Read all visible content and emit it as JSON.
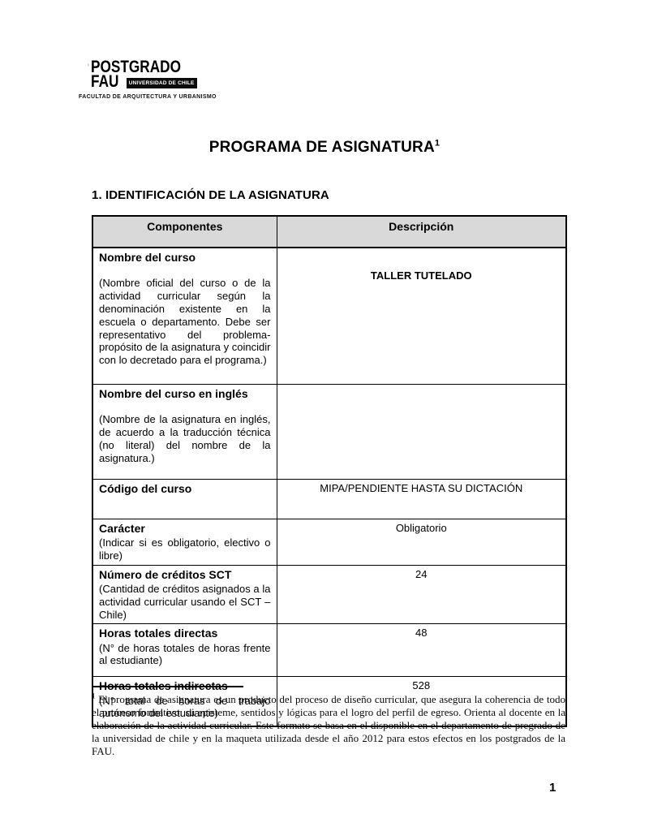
{
  "colors": {
    "ink": "#000000",
    "table_header_bg": "#d9d9d9",
    "badge_bg": "#0c0c0c",
    "badge_text": "#ffffff"
  },
  "logo": {
    "line1": "POSTGRADO",
    "line2": "FAU",
    "badge": "UNIVERSIDAD DE CHILE",
    "subtitle": "FACULTAD DE ARQUITECTURA Y URBANISMO",
    "emblem": "university-of-chile-shield-with-star"
  },
  "title": {
    "text": "PROGRAMA DE ASIGNATURA",
    "superscript": "1"
  },
  "section_heading": "1. IDENTIFICACIÓN DE LA ASIGNATURA",
  "table": {
    "headers": [
      "Componentes",
      "Descripción"
    ],
    "rows": [
      {
        "component": "Nombre del curso",
        "note": "(Nombre oficial del curso o de la actividad curricular según la denominación existente en la escuela o departamento. Debe ser representativo del problema-propósito de la asignatura y coincidir con lo decretado para el programa.)",
        "spacer": true,
        "description": "TALLER TUTELADO",
        "desc_bold": true
      },
      {
        "component": "Nombre del curso en inglés",
        "note": "(Nombre de la asignatura en inglés, de acuerdo a la traducción técnica (no literal) del nombre de la asignatura.)",
        "spacer": true,
        "description": "",
        "desc_bold": false
      },
      {
        "component": "Código del curso",
        "note": "",
        "spacer": false,
        "description": "MIPA/PENDIENTE HASTA SU DICTACIÓN",
        "desc_bold": false
      },
      {
        "component": "Carácter",
        "note": "(Indicar si es obligatorio, electivo o libre)",
        "spacer": false,
        "description": "Obligatorio",
        "desc_bold": false
      },
      {
        "component": "Número de créditos SCT",
        "note": "(Cantidad de créditos asignados a la actividad curricular usando el SCT – Chile)",
        "spacer": false,
        "description": "24",
        "desc_bold": false
      },
      {
        "component": "Horas totales directas",
        "note": "(N° de horas totales de horas frente al estudiante)",
        "spacer": false,
        "description": "48",
        "desc_bold": false
      },
      {
        "component": "Horas totales indirectas",
        "note": "(N° total de horas de trabajo autónomo del estudiante)",
        "spacer": false,
        "description": "528",
        "desc_bold": false
      }
    ]
  },
  "footnote": {
    "marker": "1",
    "text": "El programa de asignatura es un producto del proceso de diseño curricular, que asegura la coherencia de todo el proceso formativo: su episteme, sentidos y lógicas para el logro del perfil de egreso. Orienta al docente en la elaboración de la actividad curricular. Este formato se basa en el disponible en el departamento de pregrado de la universidad de chile y en la maqueta utilizada desde el año 2012 para estos efectos en los postgrados de la FAU."
  },
  "page_number": "1"
}
